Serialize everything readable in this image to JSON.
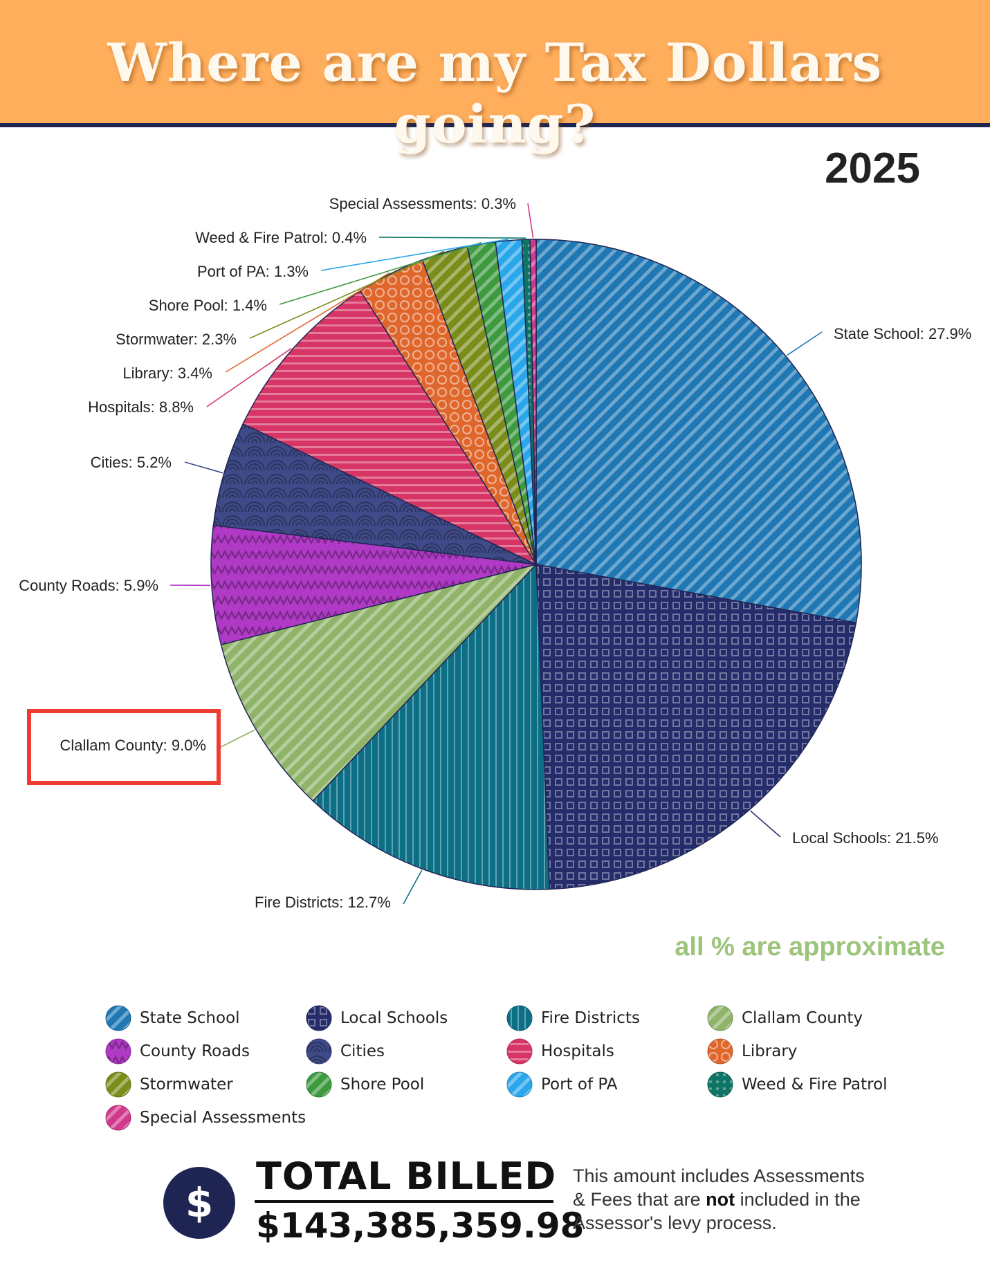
{
  "header": {
    "title": "Where are my Tax Dollars going?"
  },
  "year": "2025",
  "note_approx": "all % are approximate",
  "chart_data": {
    "type": "pie",
    "title": "",
    "slices": [
      {
        "label": "State School",
        "value": 27.9,
        "display": "State School: 27.9%",
        "color": "#1f78b4",
        "pattern": "diagonal-stripes"
      },
      {
        "label": "Local Schools",
        "value": 21.5,
        "display": "Local Schools: 21.5%",
        "color": "#252c6a",
        "pattern": "squares-grid"
      },
      {
        "label": "Fire Districts",
        "value": 12.7,
        "display": "Fire Districts: 12.7%",
        "color": "#0d6f86",
        "pattern": "vertical-stripes"
      },
      {
        "label": "Clallam County",
        "value": 9.0,
        "display": "Clallam County: 9.0%",
        "color": "#8fb369",
        "pattern": "diagonal-stripes"
      },
      {
        "label": "County Roads",
        "value": 5.9,
        "display": "County Roads: 5.9%",
        "color": "#b03ac6",
        "pattern": "zigzag"
      },
      {
        "label": "Cities",
        "value": 5.2,
        "display": "Cities: 5.2%",
        "color": "#3f4a88",
        "pattern": "scallops"
      },
      {
        "label": "Hospitals",
        "value": 8.8,
        "display": "Hospitals: 8.8%",
        "color": "#d63565",
        "pattern": "horizontal-stripes"
      },
      {
        "label": "Library",
        "value": 3.4,
        "display": "Library: 3.4%",
        "color": "#e0672c",
        "pattern": "circles"
      },
      {
        "label": "Stormwater",
        "value": 2.3,
        "display": "Stormwater: 2.3%",
        "color": "#7a8d1a",
        "pattern": "diagonal-stripes"
      },
      {
        "label": "Shore Pool",
        "value": 1.4,
        "display": "Shore Pool: 1.4%",
        "color": "#3d9a3f",
        "pattern": "diagonal-stripes"
      },
      {
        "label": "Port of PA",
        "value": 1.3,
        "display": "Port of PA: 1.3%",
        "color": "#2aa7ea",
        "pattern": "diagonal-stripes"
      },
      {
        "label": "Weed & Fire Patrol",
        "value": 0.4,
        "display": "Weed & Fire Patrol: 0.4%",
        "color": "#0f7565",
        "pattern": "dots"
      },
      {
        "label": "Special Assessments",
        "value": 0.3,
        "display": "Special Assessments: 0.3%",
        "color": "#d1398b",
        "pattern": "diagonal-stripes"
      }
    ],
    "highlighted": "Clallam County",
    "highlight_color": "#ef3b32",
    "legend": {
      "position": "bottom",
      "items": [
        "State School",
        "Local Schools",
        "Fire Districts",
        "Clallam County",
        "County Roads",
        "Cities",
        "Hospitals",
        "Library",
        "Stormwater",
        "Shore Pool",
        "Port of PA",
        "Weed & Fire Patrol",
        "Special Assessments"
      ]
    }
  },
  "total": {
    "label": "TOTAL BILLED",
    "amount": "$143,385,359.98",
    "icon": "dollar-sign-icon",
    "note_part1": "This amount includes Assessments & Fees that are ",
    "note_bold": "not",
    "note_part2": " included in the Assessor's levy process."
  },
  "colors": {
    "banner": "#ffae5c",
    "navy": "#1f2552",
    "approx_text": "#9cc47a"
  }
}
